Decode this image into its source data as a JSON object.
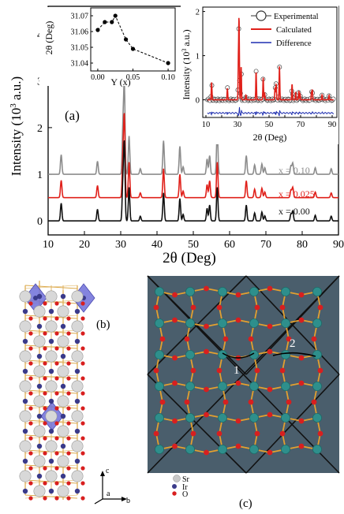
{
  "panel_a": {
    "label": "(a)",
    "ylabel": "Intensity (10",
    "ylabel_sup": "3",
    "ylabel_tail": " a.u.)",
    "xlabel": "2θ (Deg)",
    "series_labels": [
      "x = 0.10",
      "x = 0.025",
      "x = 0.00"
    ],
    "colors": [
      "#8c8c8c",
      "#e0201a",
      "#111111"
    ]
  },
  "inset_left": {
    "ylabel": "2θ (Deg)",
    "xlabel": "Y (x)"
  },
  "inset_right": {
    "ylabel": "Intensity (10",
    "ylabel_sup": "3",
    "ylabel_tail": " a.u.)",
    "xlabel": "2θ (Deg)",
    "legend": [
      "Experimental",
      "Calculated",
      "Difference"
    ],
    "colors": {
      "experimental": "#333333",
      "calculated": "#e0201a",
      "difference": "#1f2fb0"
    }
  },
  "panel_b": {
    "label": "(b)",
    "axes": {
      "c": "c",
      "a": "a",
      "b": "b"
    }
  },
  "panel_c": {
    "label": "(c)",
    "angle_labels": [
      "1",
      "2"
    ],
    "legend": [
      "Sr",
      "Ir",
      "O"
    ],
    "colors": {
      "background": "#4a5e6c",
      "sr": "#2e8f8c",
      "o": "#d81f1f",
      "bond": "#e2a030",
      "ir_octa": "#6e6ed8"
    }
  },
  "chart_data": [
    {
      "type": "line",
      "title": "",
      "xlabel": "2θ (Deg)",
      "ylabel": "Intensity (10^3 a.u.)",
      "xlim": [
        10,
        90
      ],
      "ylim": [
        -0.3,
        4.6
      ],
      "xticks": [
        10,
        20,
        30,
        40,
        50,
        60,
        70,
        80,
        90
      ],
      "yticks": [
        0,
        1,
        2,
        3,
        4
      ],
      "series": [
        {
          "name": "x = 0.10",
          "offset": 1.0,
          "peaks": [
            [
              13.6,
              0.42
            ],
            [
              23.6,
              0.28
            ],
            [
              30.6,
              0.95
            ],
            [
              31.0,
              1.85
            ],
            [
              32.3,
              0.82
            ],
            [
              35.4,
              0.12
            ],
            [
              41.8,
              0.72
            ],
            [
              46.3,
              0.6
            ],
            [
              47.2,
              0.16
            ],
            [
              53.8,
              0.33
            ],
            [
              54.5,
              0.4
            ],
            [
              56.6,
              0.92
            ],
            [
              64.6,
              0.4
            ],
            [
              66.9,
              0.2
            ],
            [
              68.9,
              0.22
            ],
            [
              69.7,
              0.14
            ],
            [
              76.9,
              0.18
            ],
            [
              77.4,
              0.24
            ],
            [
              83.6,
              0.14
            ],
            [
              88.0,
              0.12
            ]
          ]
        },
        {
          "name": "x = 0.025",
          "offset": 0.5,
          "peaks": [
            [
              13.6,
              0.37
            ],
            [
              23.6,
              0.26
            ],
            [
              30.6,
              0.85
            ],
            [
              31.0,
              1.7
            ],
            [
              32.3,
              0.76
            ],
            [
              35.4,
              0.1
            ],
            [
              41.8,
              0.62
            ],
            [
              46.3,
              0.5
            ],
            [
              47.2,
              0.14
            ],
            [
              53.8,
              0.28
            ],
            [
              54.5,
              0.36
            ],
            [
              56.6,
              0.76
            ],
            [
              64.6,
              0.36
            ],
            [
              66.9,
              0.18
            ],
            [
              68.9,
              0.2
            ],
            [
              69.7,
              0.12
            ],
            [
              76.9,
              0.16
            ],
            [
              77.4,
              0.22
            ],
            [
              83.6,
              0.12
            ],
            [
              88.0,
              0.1
            ]
          ]
        },
        {
          "name": "x = 0.00",
          "offset": 0.0,
          "peaks": [
            [
              13.6,
              0.38
            ],
            [
              23.6,
              0.25
            ],
            [
              30.6,
              0.8
            ],
            [
              31.0,
              1.62
            ],
            [
              32.3,
              0.72
            ],
            [
              35.4,
              0.1
            ],
            [
              41.8,
              0.6
            ],
            [
              46.3,
              0.48
            ],
            [
              47.2,
              0.14
            ],
            [
              53.8,
              0.27
            ],
            [
              54.5,
              0.34
            ],
            [
              56.6,
              0.72
            ],
            [
              64.6,
              0.34
            ],
            [
              66.9,
              0.17
            ],
            [
              68.9,
              0.19
            ],
            [
              69.7,
              0.11
            ],
            [
              76.9,
              0.15
            ],
            [
              77.4,
              0.21
            ],
            [
              83.6,
              0.12
            ],
            [
              88.0,
              0.1
            ]
          ]
        }
      ]
    },
    {
      "type": "scatter",
      "title": "",
      "xlabel": "Y (x)",
      "ylabel": "2θ (Deg)",
      "xlim": [
        -0.01,
        0.11
      ],
      "ylim": [
        31.035,
        31.075
      ],
      "xticks": [
        0.0,
        0.05,
        0.1
      ],
      "xticklabels": [
        "0.00",
        "0.05",
        "0.10"
      ],
      "yticks": [
        31.04,
        31.05,
        31.06,
        31.07
      ],
      "yticklabels": [
        "31.04",
        "31.05",
        "31.06",
        "31.07"
      ],
      "x": [
        0.0,
        0.01,
        0.02,
        0.025,
        0.04,
        0.05,
        0.1
      ],
      "y": [
        31.061,
        31.066,
        31.066,
        31.07,
        31.055,
        31.049,
        31.04
      ]
    },
    {
      "type": "line",
      "title": "",
      "xlabel": "2θ (Deg)",
      "ylabel": "Intensity (10^3 a.u.)",
      "xlim": [
        8,
        93
      ],
      "ylim": [
        -0.4,
        2.1
      ],
      "xticks": [
        10,
        20,
        30,
        40,
        50,
        60,
        70,
        80,
        90
      ],
      "yticks": [
        0,
        1,
        2
      ],
      "legend": "top-right",
      "series": [
        {
          "name": "Experimental"
        },
        {
          "name": "Calculated"
        },
        {
          "name": "Difference"
        }
      ]
    }
  ]
}
